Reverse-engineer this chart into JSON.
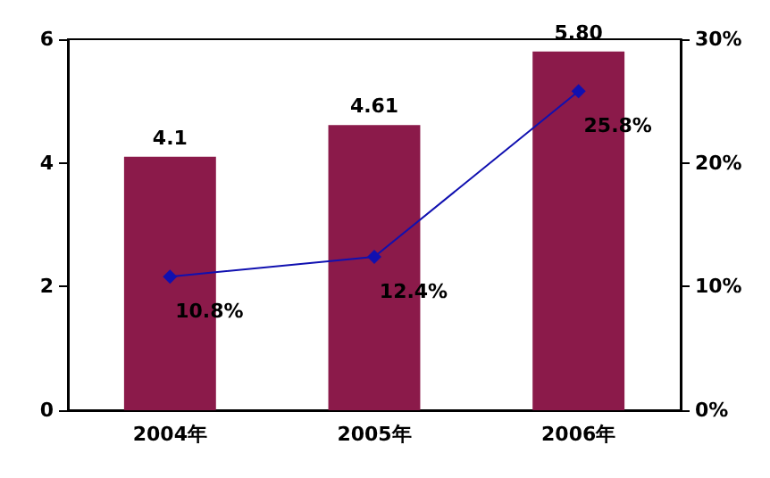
{
  "chart_data": {
    "type": "bar",
    "categories": [
      "2004年",
      "2005年",
      "2006年"
    ],
    "series": [
      {
        "color": "#8b1a4a",
        "values": [
          4.1,
          4.61,
          5.8
        ],
        "value_labels": [
          "4.1",
          "4.61",
          "5.80"
        ]
      },
      {
        "type": "line",
        "axis": "y2",
        "color": "#1010b0",
        "values": [
          10.8,
          12.4,
          25.8
        ],
        "value_labels": [
          "10.8%",
          "12.4%",
          "25.8%"
        ],
        "marker": "diamond"
      }
    ],
    "ylim": [
      0,
      6
    ],
    "yticks": [
      0,
      2,
      4,
      6
    ],
    "y2lim": [
      0,
      30
    ],
    "y2ticks": [
      {
        "value": 0,
        "label": "0%"
      },
      {
        "value": 10,
        "label": "10%"
      },
      {
        "value": 20,
        "label": "20%"
      },
      {
        "value": 30,
        "label": "30%"
      }
    ],
    "grid": false
  }
}
